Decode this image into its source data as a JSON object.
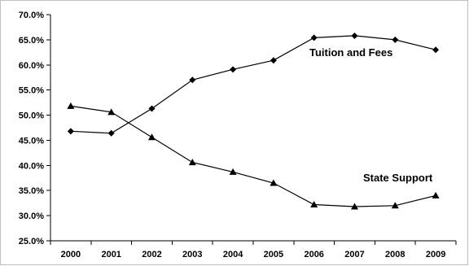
{
  "chart_data": {
    "type": "line",
    "categories": [
      "2000",
      "2001",
      "2002",
      "2003",
      "2004",
      "2005",
      "2006",
      "2007",
      "2008",
      "2009"
    ],
    "ylim": [
      25.0,
      70.0
    ],
    "yticks": [
      "25.0%",
      "30.0%",
      "35.0%",
      "40.0%",
      "45.0%",
      "50.0%",
      "55.0%",
      "60.0%",
      "65.0%",
      "70.0%"
    ],
    "grid": false,
    "series": [
      {
        "name": "Tuition and Fees",
        "marker": "diamond",
        "values": [
          46.8,
          46.4,
          51.3,
          57.0,
          59.1,
          60.9,
          65.4,
          65.8,
          65.0,
          63.0
        ]
      },
      {
        "name": "State Support",
        "marker": "triangle",
        "values": [
          51.8,
          50.6,
          45.6,
          40.6,
          38.7,
          36.5,
          32.2,
          31.8,
          32.0,
          34.0
        ]
      }
    ],
    "annotations": [
      "Tuition and Fees",
      "State Support"
    ]
  }
}
